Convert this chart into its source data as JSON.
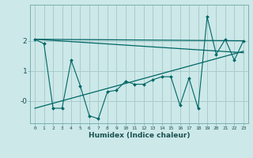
{
  "title": "",
  "xlabel": "Humidex (Indice chaleur)",
  "ylabel": "",
  "background_color": "#cce8e8",
  "grid_color": "#aacccc",
  "line_color": "#006666",
  "x_values": [
    0,
    1,
    2,
    3,
    4,
    5,
    6,
    7,
    8,
    9,
    10,
    11,
    12,
    13,
    14,
    15,
    16,
    17,
    18,
    19,
    20,
    21,
    22,
    23
  ],
  "y_zigzag": [
    2.05,
    1.9,
    -0.25,
    -0.25,
    1.35,
    0.5,
    -0.5,
    -0.6,
    0.3,
    0.35,
    0.65,
    0.55,
    0.55,
    0.7,
    0.8,
    0.8,
    -0.15,
    0.75,
    -0.25,
    2.8,
    1.55,
    2.05,
    1.35,
    2.0
  ],
  "trend1_x": [
    0,
    23
  ],
  "trend1_y": [
    2.05,
    2.0
  ],
  "trend2_x": [
    0,
    23
  ],
  "trend2_y": [
    2.05,
    1.6
  ],
  "trend3_x": [
    0,
    23
  ],
  "trend3_y": [
    -0.25,
    1.65
  ],
  "yticks": [
    0,
    1,
    2
  ],
  "ytick_labels": [
    "-0",
    "1",
    "2"
  ],
  "ylim": [
    -0.75,
    3.2
  ],
  "xlim": [
    -0.5,
    23.5
  ]
}
